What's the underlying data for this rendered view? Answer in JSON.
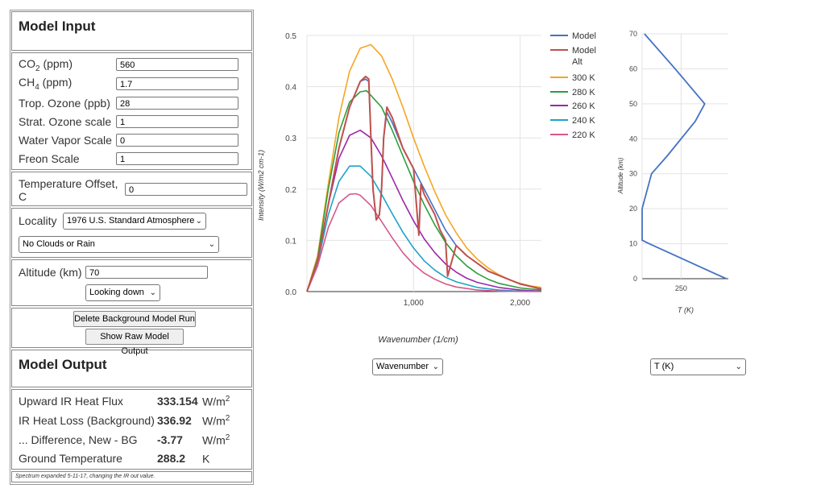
{
  "model_input": {
    "title": "Model Input",
    "co2": {
      "label_pre": "CO",
      "label_sub": "2",
      "label_post": " (ppm)",
      "value": "560"
    },
    "ch4": {
      "label_pre": "CH",
      "label_sub": "4",
      "label_post": " (ppm)",
      "value": "1.7"
    },
    "trop_ozone": {
      "label": "Trop. Ozone (ppb)",
      "value": "28"
    },
    "strat_ozone": {
      "label": "Strat. Ozone scale",
      "value": "1"
    },
    "water_vapor": {
      "label": "Water Vapor Scale",
      "value": "0"
    },
    "freon": {
      "label": "Freon Scale",
      "value": "1"
    },
    "temp_offset": {
      "label_line1": "Temperature Offset,",
      "label_line2": "C",
      "value": "0"
    },
    "locality": {
      "label": "Locality",
      "value": "1976 U.S. Standard Atmosphere"
    },
    "clouds": {
      "value": "No Clouds or Rain"
    },
    "altitude": {
      "label": "Altitude (km)",
      "value": "70"
    },
    "looking": {
      "value": "Looking down"
    },
    "delete_button": "Delete Background Model Run",
    "raw_button": "Show Raw Model Output"
  },
  "model_output": {
    "title": "Model Output",
    "rows": [
      {
        "label": "Upward IR Heat Flux",
        "value": "333.154",
        "unit": "W/m",
        "unit_sup": "2"
      },
      {
        "label": "IR Heat Loss (Background)",
        "value": "336.92",
        "unit": "W/m",
        "unit_sup": "2"
      },
      {
        "label": "... Difference, New - BG",
        "value": "-3.77",
        "unit": "W/m",
        "unit_sup": "2"
      },
      {
        "label": "Ground Temperature",
        "value": "288.2",
        "unit": "K",
        "unit_sup": ""
      }
    ],
    "note": "Spectrum expanded 5-11-17, changing the IR out value."
  },
  "spectrum_select": "Wavenumber",
  "profile_select": "T (K)",
  "chart_data": [
    {
      "type": "line",
      "xlabel": "Wavenumber (1/cm)",
      "ylabel": "Intensity (W/m2 cm-1)",
      "xlim": [
        0,
        2200
      ],
      "ylim": [
        0,
        0.5
      ],
      "xticks": [
        "1,000",
        "2,000"
      ],
      "yticks": [
        "0.0",
        "0.1",
        "0.2",
        "0.3",
        "0.4",
        "0.5"
      ],
      "legend_position": "right",
      "series": [
        {
          "name": "Model",
          "color": "#4472c4",
          "x": [
            0,
            100,
            200,
            300,
            400,
            500,
            550,
            580,
            600,
            620,
            650,
            680,
            700,
            720,
            750,
            800,
            900,
            1000,
            1100,
            1200,
            1300,
            1400,
            1500,
            1700,
            2000,
            2200
          ],
          "y": [
            0,
            0.06,
            0.17,
            0.28,
            0.36,
            0.41,
            0.415,
            0.41,
            0.3,
            0.2,
            0.14,
            0.15,
            0.2,
            0.3,
            0.35,
            0.33,
            0.28,
            0.24,
            0.2,
            0.16,
            0.12,
            0.09,
            0.07,
            0.04,
            0.015,
            0.005
          ]
        },
        {
          "name": "Model Alt",
          "color": "#c0504d",
          "x": [
            0,
            100,
            200,
            300,
            400,
            500,
            550,
            580,
            600,
            620,
            650,
            680,
            700,
            720,
            750,
            800,
            900,
            1000,
            1050,
            1070,
            1100,
            1200,
            1250,
            1300,
            1320,
            1400,
            1500,
            1700,
            2000,
            2200
          ],
          "y": [
            0,
            0.06,
            0.17,
            0.28,
            0.36,
            0.41,
            0.42,
            0.415,
            0.3,
            0.2,
            0.14,
            0.15,
            0.2,
            0.3,
            0.36,
            0.34,
            0.28,
            0.24,
            0.11,
            0.21,
            0.19,
            0.15,
            0.12,
            0.1,
            0.03,
            0.09,
            0.07,
            0.04,
            0.015,
            0.005
          ]
        },
        {
          "name": "300 K",
          "color": "#f5a623",
          "x": [
            0,
            100,
            200,
            300,
            400,
            500,
            600,
            700,
            800,
            900,
            1000,
            1100,
            1200,
            1300,
            1400,
            1500,
            1600,
            1700,
            1800,
            1900,
            2000,
            2100,
            2200
          ],
          "y": [
            0,
            0.07,
            0.21,
            0.34,
            0.43,
            0.475,
            0.482,
            0.46,
            0.415,
            0.36,
            0.3,
            0.245,
            0.195,
            0.15,
            0.115,
            0.085,
            0.063,
            0.046,
            0.033,
            0.023,
            0.016,
            0.011,
            0.008
          ]
        },
        {
          "name": "280 K",
          "color": "#2e9e3e",
          "x": [
            0,
            100,
            200,
            300,
            400,
            500,
            560,
            700,
            800,
            900,
            1000,
            1100,
            1200,
            1300,
            1400,
            1500,
            1600,
            1700,
            1800,
            2000,
            2200
          ],
          "y": [
            0,
            0.065,
            0.2,
            0.31,
            0.37,
            0.39,
            0.392,
            0.36,
            0.315,
            0.265,
            0.215,
            0.17,
            0.13,
            0.096,
            0.07,
            0.05,
            0.035,
            0.024,
            0.016,
            0.007,
            0.003
          ]
        },
        {
          "name": "260 K",
          "color": "#9b27a8",
          "x": [
            0,
            100,
            200,
            300,
            400,
            500,
            600,
            700,
            800,
            900,
            1000,
            1100,
            1200,
            1300,
            1400,
            1500,
            1600,
            1800,
            2000,
            2200
          ],
          "y": [
            0,
            0.06,
            0.17,
            0.26,
            0.305,
            0.315,
            0.3,
            0.265,
            0.222,
            0.178,
            0.138,
            0.103,
            0.076,
            0.054,
            0.038,
            0.026,
            0.018,
            0.008,
            0.003,
            0.001
          ]
        },
        {
          "name": "240 K",
          "color": "#1fa2c9",
          "x": [
            0,
            100,
            200,
            300,
            400,
            500,
            600,
            700,
            800,
            900,
            1000,
            1100,
            1200,
            1300,
            1400,
            1600,
            1800,
            2000,
            2200
          ],
          "y": [
            0,
            0.055,
            0.15,
            0.215,
            0.245,
            0.245,
            0.225,
            0.19,
            0.152,
            0.116,
            0.085,
            0.06,
            0.042,
            0.028,
            0.019,
            0.008,
            0.003,
            0.001,
            0.0005
          ]
        },
        {
          "name": "220 K",
          "color": "#d6588b",
          "x": [
            0,
            100,
            200,
            300,
            400,
            460,
            500,
            600,
            700,
            800,
            900,
            1000,
            1100,
            1200,
            1300,
            1400,
            1600,
            1800,
            2000,
            2200
          ],
          "y": [
            0,
            0.05,
            0.125,
            0.173,
            0.19,
            0.191,
            0.188,
            0.168,
            0.137,
            0.105,
            0.076,
            0.053,
            0.036,
            0.024,
            0.015,
            0.009,
            0.003,
            0.001,
            0.0003,
            0.0001
          ]
        }
      ]
    },
    {
      "type": "line",
      "xlabel": "T (K)",
      "ylabel": "Altitude (km)",
      "xlim": [
        217,
        290
      ],
      "ylim": [
        0,
        70
      ],
      "xticks": [
        "250"
      ],
      "yticks": [
        "0",
        "10",
        "20",
        "30",
        "40",
        "50",
        "60",
        "70"
      ],
      "series": [
        {
          "color": "#4472c4",
          "x": [
            288.2,
            223,
            217,
            217,
            225,
            238,
            262,
            270,
            245,
            219
          ],
          "y": [
            0,
            10,
            11,
            20,
            30,
            35,
            45,
            50,
            60,
            70
          ]
        }
      ]
    }
  ]
}
